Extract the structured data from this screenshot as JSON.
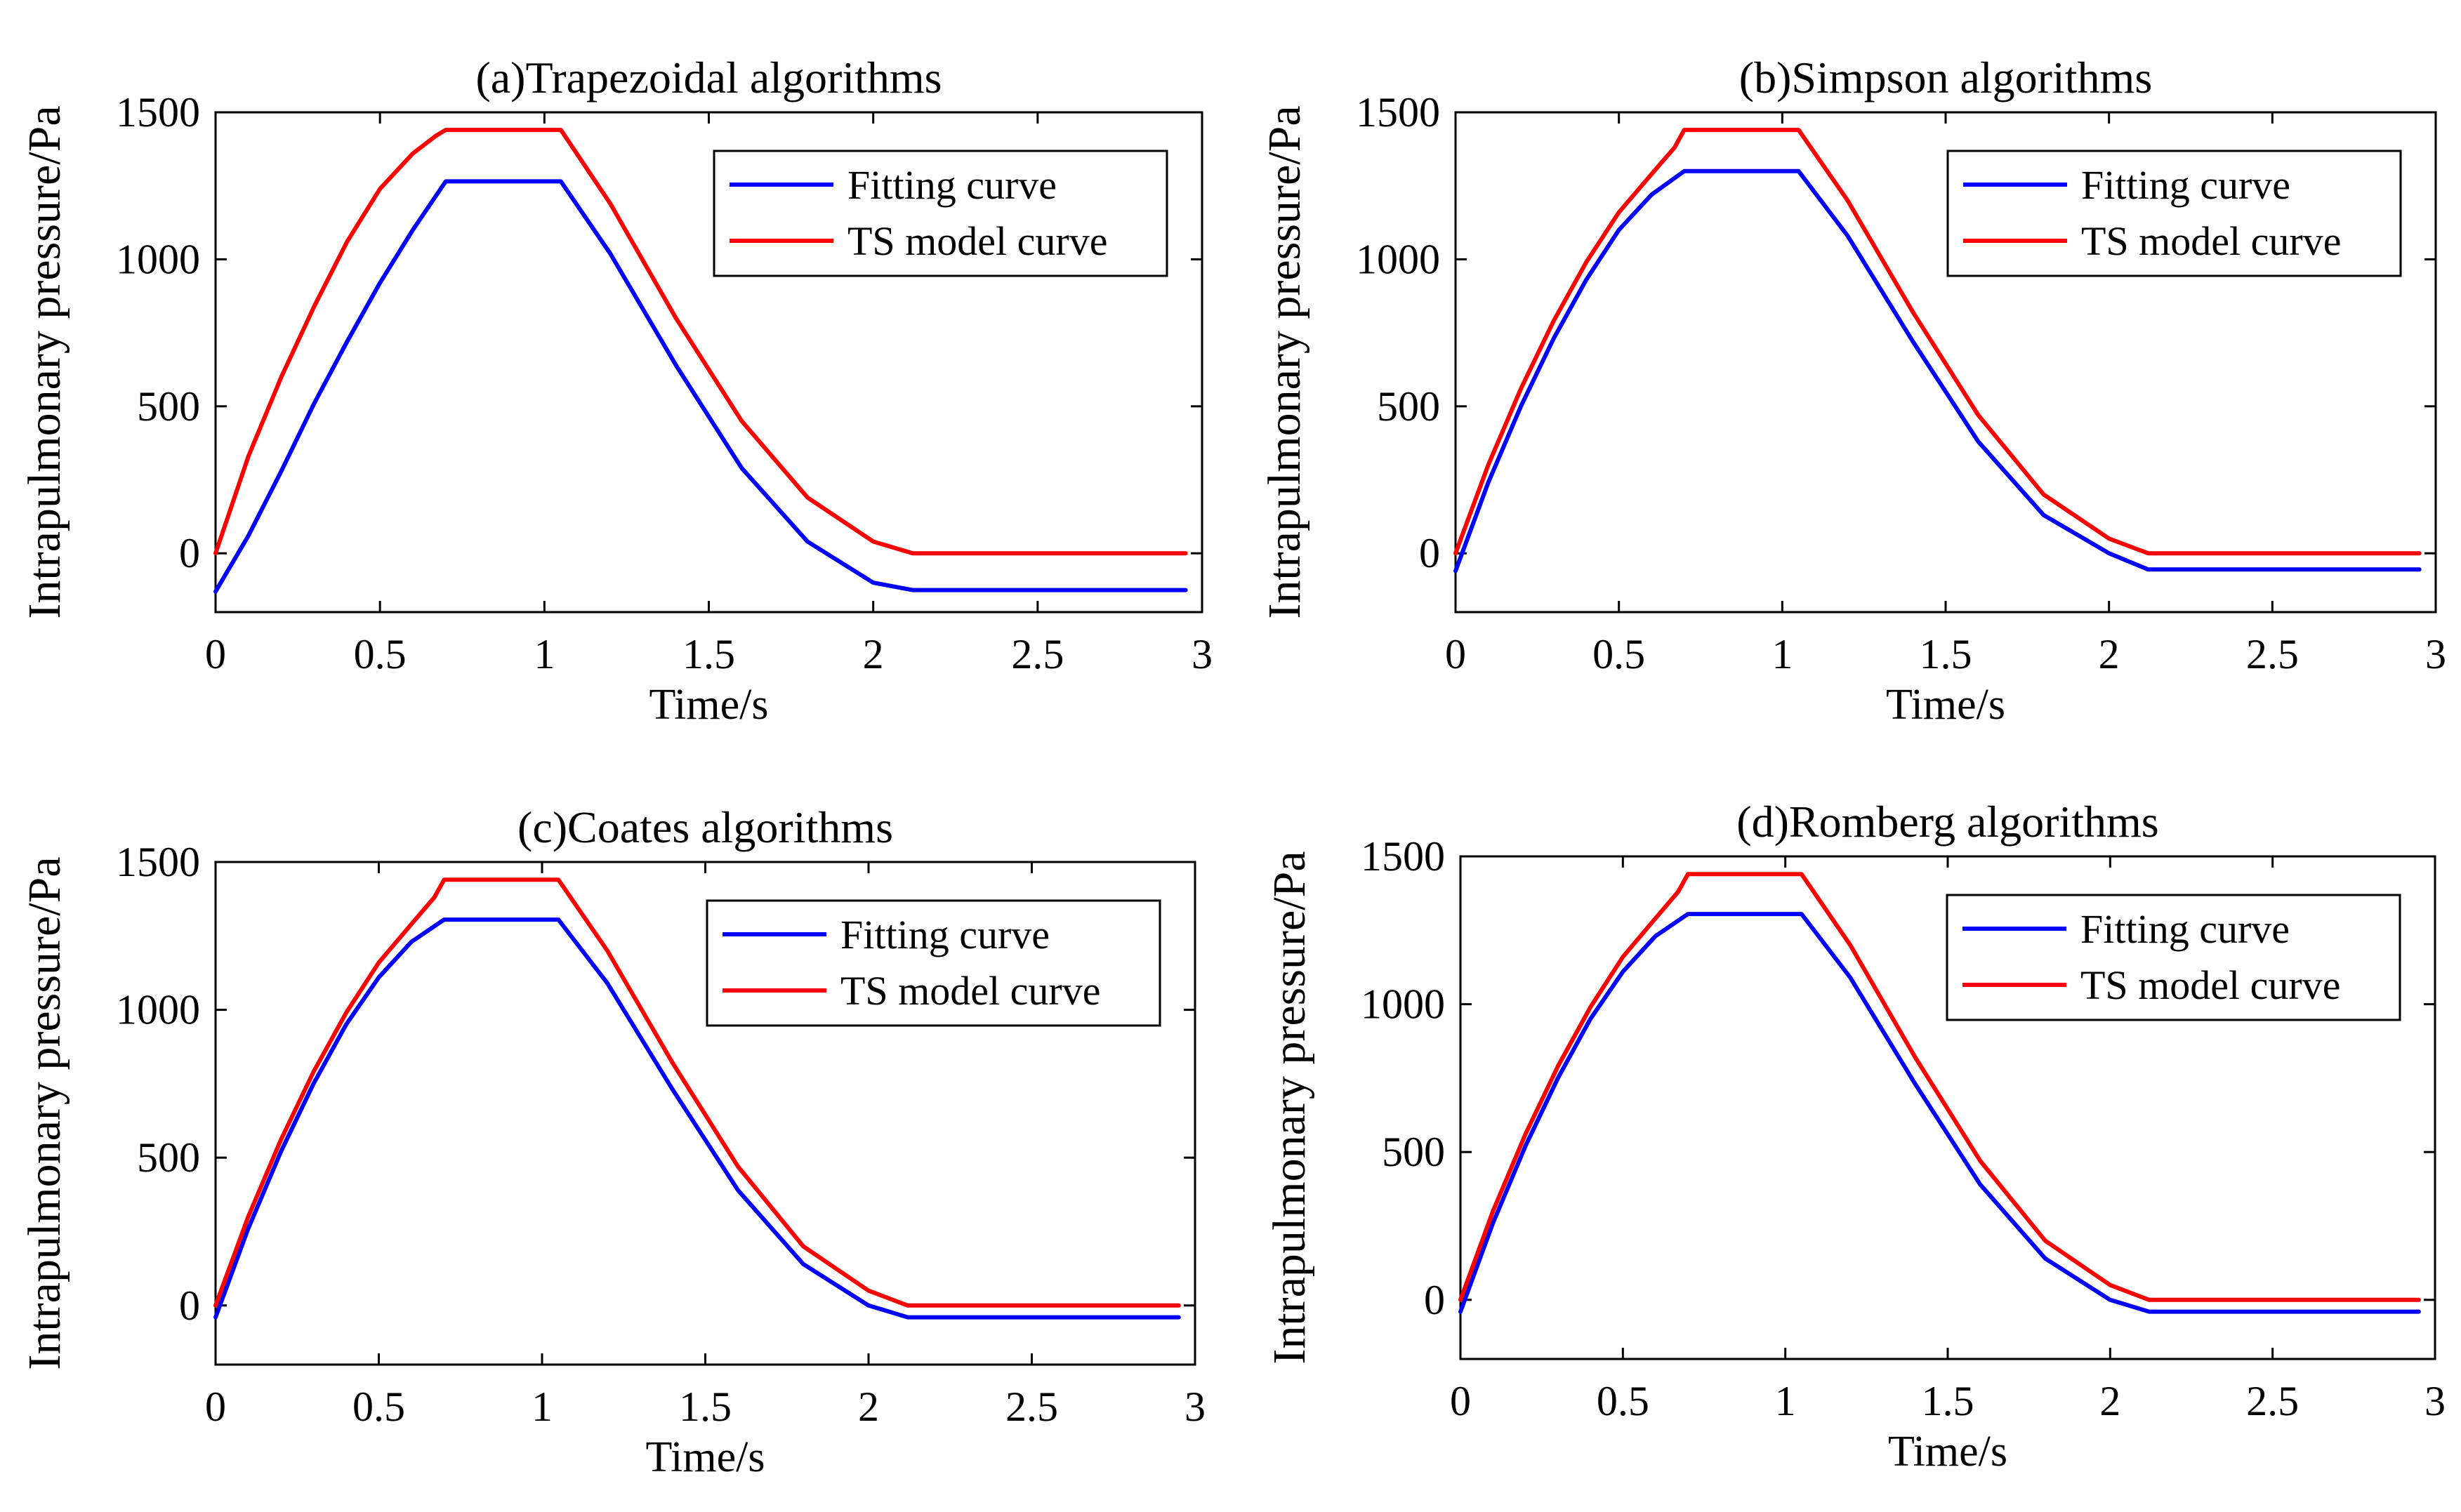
{
  "colors": {
    "fitting": "#0000ff",
    "ts": "#ff0000",
    "axis": "#000000"
  },
  "chart_data": [
    {
      "type": "line",
      "title": "(a)Trapezoidal algorithms",
      "xlabel": "Time/s",
      "ylabel": "Intrapulmonary pressure/Pa",
      "xlim": [
        0,
        3
      ],
      "ylim": [
        -200,
        1500
      ],
      "xticks": [
        0,
        0.5,
        1,
        1.5,
        2,
        2.5,
        3
      ],
      "xtick_labels": [
        "0",
        "0.5",
        "1",
        "1.5",
        "2",
        "2.5",
        "3"
      ],
      "yticks": [
        0,
        500,
        1000,
        1500
      ],
      "ytick_labels": [
        "0",
        "500",
        "1000",
        "1500"
      ],
      "legend": "top-right",
      "series": [
        {
          "name": "Fitting curve",
          "color": "#0000ff",
          "x": [
            0,
            0.1,
            0.2,
            0.3,
            0.4,
            0.5,
            0.6,
            0.7,
            1.05,
            1.2,
            1.4,
            1.6,
            1.8,
            2.0,
            2.12,
            2.95
          ],
          "y": [
            -130,
            60,
            280,
            510,
            720,
            920,
            1100,
            1265,
            1265,
            1020,
            640,
            290,
            40,
            -100,
            -125,
            -125
          ]
        },
        {
          "name": "TS model curve",
          "color": "#ff0000",
          "x": [
            0,
            0.1,
            0.2,
            0.3,
            0.4,
            0.5,
            0.6,
            0.67,
            0.7,
            1.05,
            1.2,
            1.4,
            1.6,
            1.8,
            2.0,
            2.12,
            2.95
          ],
          "y": [
            0,
            330,
            600,
            840,
            1060,
            1240,
            1360,
            1420,
            1440,
            1440,
            1190,
            800,
            450,
            190,
            40,
            0,
            0
          ]
        }
      ]
    },
    {
      "type": "line",
      "title": "(b)Simpson algorithms",
      "xlabel": "Time/s",
      "ylabel": "Intrapulmonary pressure/Pa",
      "xlim": [
        0,
        3
      ],
      "ylim": [
        -200,
        1500
      ],
      "xticks": [
        0,
        0.5,
        1,
        1.5,
        2,
        2.5,
        3
      ],
      "xtick_labels": [
        "0",
        "0.5",
        "1",
        "1.5",
        "2",
        "2.5",
        "3"
      ],
      "yticks": [
        0,
        500,
        1000,
        1500
      ],
      "ytick_labels": [
        "0",
        "500",
        "1000",
        "1500"
      ],
      "legend": "top-right",
      "series": [
        {
          "name": "Fitting curve",
          "color": "#0000ff",
          "x": [
            0,
            0.1,
            0.2,
            0.3,
            0.4,
            0.5,
            0.6,
            0.7,
            1.05,
            1.2,
            1.4,
            1.6,
            1.8,
            2.0,
            2.12,
            2.95
          ],
          "y": [
            -60,
            240,
            500,
            730,
            930,
            1100,
            1220,
            1300,
            1300,
            1080,
            720,
            380,
            130,
            0,
            -55,
            -55
          ]
        },
        {
          "name": "TS model curve",
          "color": "#ff0000",
          "x": [
            0,
            0.1,
            0.2,
            0.3,
            0.4,
            0.5,
            0.6,
            0.67,
            0.7,
            1.05,
            1.2,
            1.4,
            1.6,
            1.8,
            2.0,
            2.12,
            2.95
          ],
          "y": [
            0,
            300,
            560,
            790,
            990,
            1160,
            1290,
            1380,
            1440,
            1440,
            1200,
            820,
            470,
            200,
            50,
            0,
            0
          ]
        }
      ]
    },
    {
      "type": "line",
      "title": "(c)Coates algorithms",
      "xlabel": "Time/s",
      "ylabel": "Intrapulmonary pressure/Pa",
      "xlim": [
        0,
        3
      ],
      "ylim": [
        -200,
        1500
      ],
      "xticks": [
        0,
        0.5,
        1,
        1.5,
        2,
        2.5,
        3
      ],
      "xtick_labels": [
        "0",
        "0.5",
        "1",
        "1.5",
        "2",
        "2.5",
        "3"
      ],
      "yticks": [
        0,
        500,
        1000,
        1500
      ],
      "ytick_labels": [
        "0",
        "500",
        "1000",
        "1500"
      ],
      "legend": "top-right",
      "series": [
        {
          "name": "Fitting curve",
          "color": "#0000ff",
          "x": [
            0,
            0.1,
            0.2,
            0.3,
            0.4,
            0.5,
            0.6,
            0.7,
            1.05,
            1.2,
            1.4,
            1.6,
            1.8,
            2.0,
            2.12,
            2.95
          ],
          "y": [
            -40,
            260,
            520,
            750,
            950,
            1110,
            1230,
            1305,
            1305,
            1090,
            730,
            390,
            140,
            0,
            -40,
            -40
          ]
        },
        {
          "name": "TS model curve",
          "color": "#ff0000",
          "x": [
            0,
            0.1,
            0.2,
            0.3,
            0.4,
            0.5,
            0.6,
            0.67,
            0.7,
            1.05,
            1.2,
            1.4,
            1.6,
            1.8,
            2.0,
            2.12,
            2.95
          ],
          "y": [
            0,
            300,
            560,
            790,
            990,
            1160,
            1290,
            1380,
            1440,
            1440,
            1200,
            820,
            470,
            200,
            50,
            0,
            0
          ]
        }
      ]
    },
    {
      "type": "line",
      "title": "(d)Romberg algorithms",
      "xlabel": "Time/s",
      "ylabel": "Intrapulmonary pressure/Pa",
      "xlim": [
        0,
        3
      ],
      "ylim": [
        -200,
        1500
      ],
      "xticks": [
        0,
        0.5,
        1,
        1.5,
        2,
        2.5,
        3
      ],
      "xtick_labels": [
        "0",
        "0.5",
        "1",
        "1.5",
        "2",
        "2.5",
        "3"
      ],
      "yticks": [
        0,
        500,
        1000,
        1500
      ],
      "ytick_labels": [
        "0",
        "500",
        "1000",
        "1500"
      ],
      "legend": "top-right",
      "series": [
        {
          "name": "Fitting curve",
          "color": "#0000ff",
          "x": [
            0,
            0.1,
            0.2,
            0.3,
            0.4,
            0.5,
            0.6,
            0.7,
            1.05,
            1.2,
            1.4,
            1.6,
            1.8,
            2.0,
            2.12,
            2.95
          ],
          "y": [
            -40,
            260,
            520,
            750,
            950,
            1110,
            1230,
            1305,
            1305,
            1090,
            730,
            390,
            140,
            0,
            -40,
            -40
          ]
        },
        {
          "name": "TS model curve",
          "color": "#ff0000",
          "x": [
            0,
            0.1,
            0.2,
            0.3,
            0.4,
            0.5,
            0.6,
            0.67,
            0.7,
            1.05,
            1.2,
            1.4,
            1.6,
            1.8,
            2.0,
            2.12,
            2.95
          ],
          "y": [
            0,
            300,
            560,
            790,
            990,
            1160,
            1290,
            1380,
            1440,
            1440,
            1200,
            820,
            470,
            200,
            50,
            0,
            0
          ]
        }
      ]
    }
  ]
}
